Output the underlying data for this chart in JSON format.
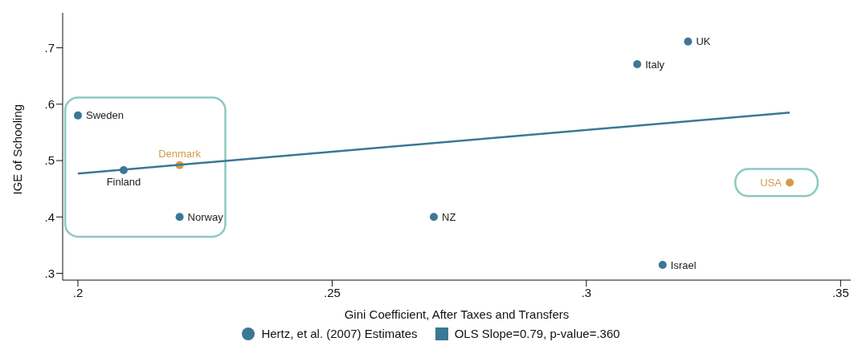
{
  "chart_data": {
    "type": "scatter",
    "xlabel": "Gini Coefficient, After Taxes and Transfers",
    "ylabel": "IGE of Schooling",
    "xlim": [
      0.197,
      0.352
    ],
    "ylim": [
      0.288,
      0.762
    ],
    "xticks": [
      {
        "value": 0.2,
        "label": ".2"
      },
      {
        "value": 0.25,
        "label": ".25"
      },
      {
        "value": 0.3,
        "label": ".3"
      },
      {
        "value": 0.35,
        "label": ".35"
      }
    ],
    "yticks": [
      {
        "value": 0.3,
        "label": ".3"
      },
      {
        "value": 0.4,
        "label": ".4"
      },
      {
        "value": 0.5,
        "label": ".5"
      },
      {
        "value": 0.6,
        "label": ".6"
      },
      {
        "value": 0.7,
        "label": ".7"
      }
    ],
    "legend": "bottom",
    "line_style": "solid",
    "series": [
      {
        "name": "Hertz, et al. (2007) Estimates",
        "marker": "circle",
        "color": "#3a7894",
        "colors": [
          "#3a7894",
          "#3a7894",
          "#d49a4a",
          "#3a7894",
          "#3a7894",
          "#3a7894",
          "#3a7894",
          "#3a7894",
          "#d49a4a"
        ],
        "x": [
          0.2,
          0.209,
          0.22,
          0.22,
          0.27,
          0.31,
          0.32,
          0.315,
          0.34
        ],
        "values": [
          0.58,
          0.483,
          0.492,
          0.4,
          0.4,
          0.671,
          0.711,
          0.315,
          0.461
        ]
      },
      {
        "name": "OLS Slope=0.79, p-value=.360",
        "type": "line",
        "marker": "none",
        "color": "#3a7894",
        "x": [
          0.2,
          0.34
        ],
        "values": [
          0.477,
          0.585
        ]
      }
    ],
    "annotations": [
      {
        "text": "Sweden",
        "x": 0.2,
        "y": 0.58
      },
      {
        "text": "Finland",
        "x": 0.209,
        "y": 0.483
      },
      {
        "text": "Denmark",
        "x": 0.22,
        "y": 0.492
      },
      {
        "text": "Norway",
        "x": 0.22,
        "y": 0.4
      },
      {
        "text": "NZ",
        "x": 0.27,
        "y": 0.4
      },
      {
        "text": "Italy",
        "x": 0.31,
        "y": 0.671
      },
      {
        "text": "UK",
        "x": 0.32,
        "y": 0.711
      },
      {
        "text": "Israel",
        "x": 0.315,
        "y": 0.315
      },
      {
        "text": "USA",
        "x": 0.34,
        "y": 0.461
      }
    ]
  }
}
